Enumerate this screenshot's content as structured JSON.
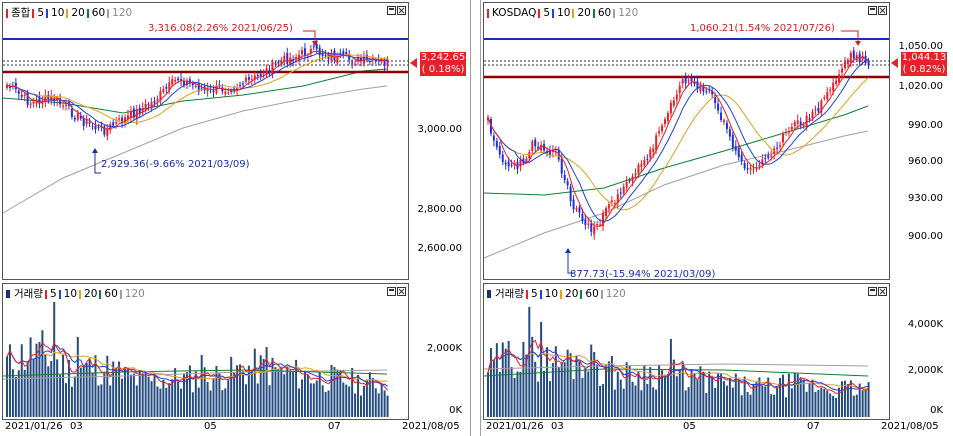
{
  "left": {
    "legend": {
      "name": "종합",
      "ma": [
        "5",
        "10",
        "20",
        "60",
        "120"
      ]
    },
    "high_annotation": "3,316.08(2.26% 2021/06/25)",
    "low_annotation": "2,929.36(-9.66% 2021/03/09)",
    "price_ticks": [
      "3,000.00",
      "2,800.00",
      "2,600.00"
    ],
    "current_price": "3,242.65",
    "current_change": "( 0.18%)",
    "volume_legend": {
      "name": "거래량",
      "ma": [
        "5",
        "10",
        "20",
        "60",
        "120"
      ]
    },
    "volume_ticks": [
      "2,000K",
      "0K"
    ],
    "dates": [
      "2021/01/26",
      "03",
      "05",
      "07",
      "2021/08/05"
    ]
  },
  "right": {
    "legend": {
      "name": "KOSDAQ",
      "ma": [
        "5",
        "10",
        "20",
        "60",
        "120"
      ]
    },
    "high_annotation": "1,060.21(1.54% 2021/07/26)",
    "low_annotation": "877.73(-15.94% 2021/03/09)",
    "price_ticks": [
      "1,050.00",
      "1,020.00",
      "990.00",
      "960.00",
      "930.00",
      "900.00"
    ],
    "current_price": "1,044.13",
    "current_change": "( 0.82%)",
    "volume_legend": {
      "name": "거래량",
      "ma": [
        "5",
        "10",
        "20",
        "60",
        "120"
      ]
    },
    "volume_ticks": [
      "4,000K",
      "2,000K",
      "0K"
    ],
    "dates": [
      "2021/01/26",
      "03",
      "05",
      "07",
      "2021/08/05"
    ]
  },
  "colors": {
    "up": "#e8202a",
    "down": "#1f2fe0",
    "ma5": "#e8202a",
    "ma10": "#2040e0",
    "ma20": "#e0a020",
    "ma60": "#108030",
    "ma120": "#a0a0a0",
    "volume": "#244c80",
    "support": "#8b0000",
    "resistance": "#1030c0"
  }
}
